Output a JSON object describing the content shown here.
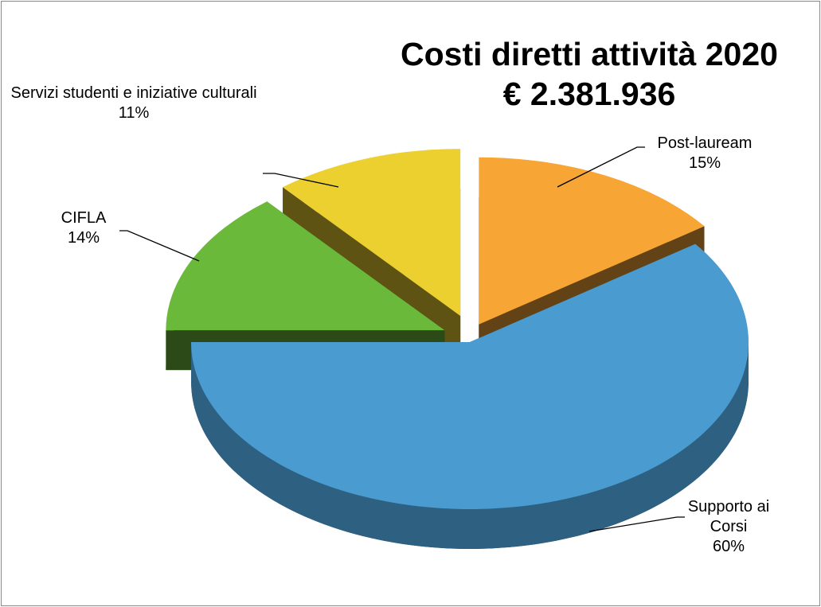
{
  "chart_data": {
    "type": "pie3d",
    "title": "Costi diretti attività  2020",
    "subtitle": "€ 2.381.936",
    "categories": [
      "Post-lauream",
      "Supporto ai Corsi",
      "CIFLA",
      "Servizi studenti e iniziative culturali"
    ],
    "values": [
      15,
      60,
      14,
      11
    ],
    "value_labels": [
      "15%",
      "60%",
      "14%",
      "11%"
    ],
    "colors": [
      "#f7a535",
      "#4a9bd0",
      "#6bb93a",
      "#ecd030"
    ]
  }
}
